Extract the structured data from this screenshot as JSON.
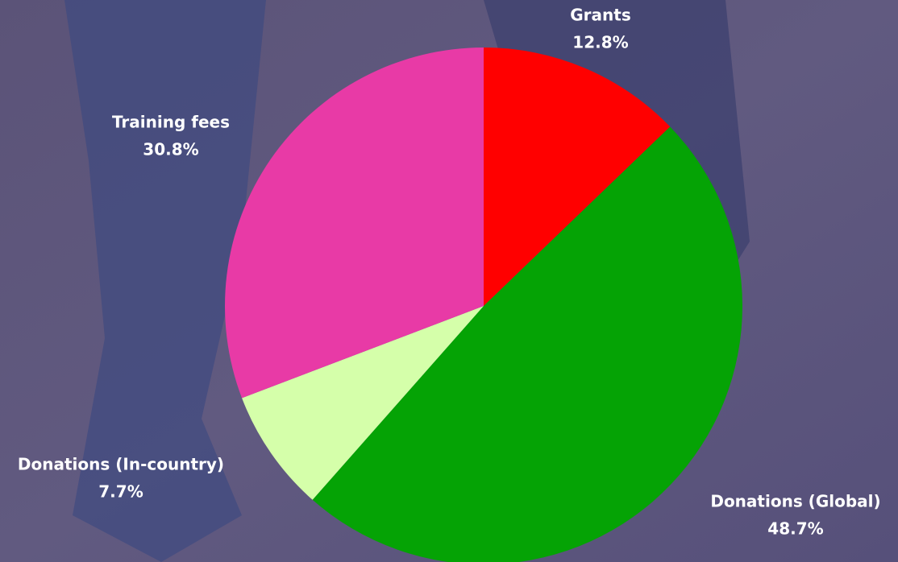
{
  "chart_data": {
    "type": "pie",
    "categories": [
      "Grants",
      "Donations (Global)",
      "Donations (In-country)",
      "Training fees"
    ],
    "values": [
      12.8,
      48.7,
      7.7,
      30.8
    ],
    "value_labels": [
      "12.8%",
      "48.7%",
      "7.7%",
      "30.8%"
    ],
    "colors": [
      "#ff0000",
      "#05a305",
      "#d5ffaa",
      "#e83aa6"
    ]
  }
}
